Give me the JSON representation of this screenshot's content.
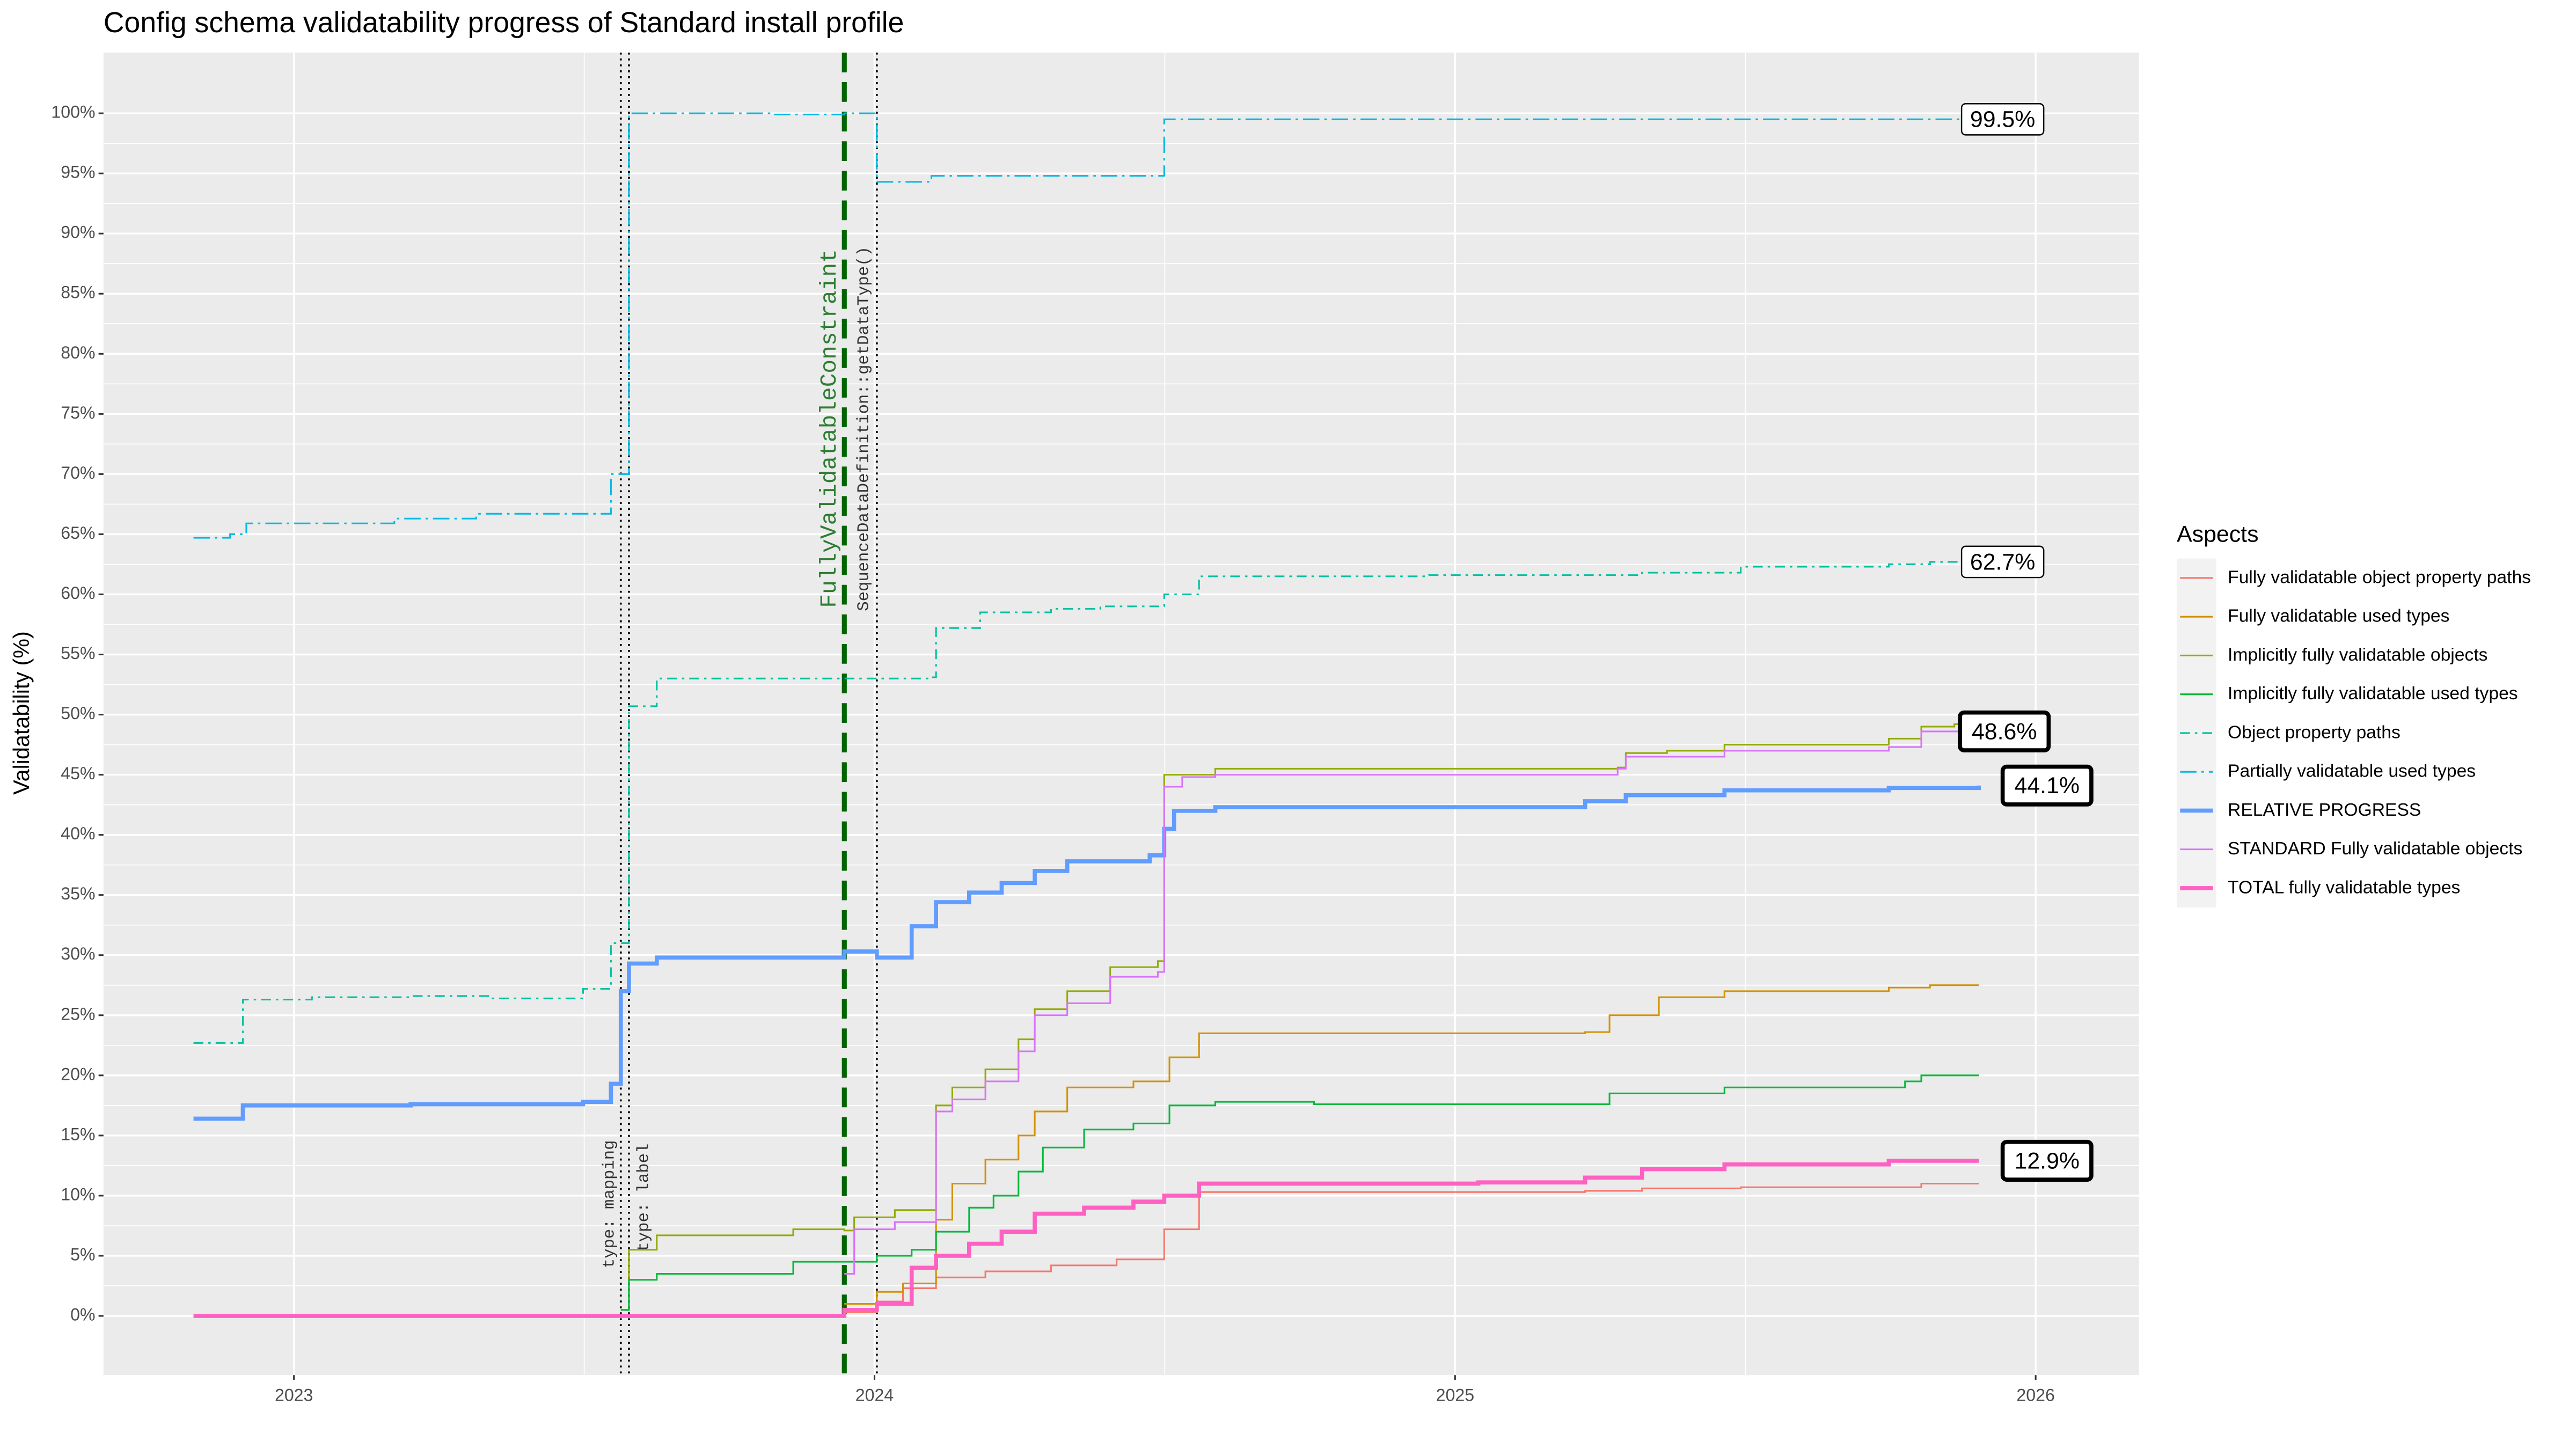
{
  "chart_data": {
    "type": "line",
    "step": true,
    "title": "Config schema validatability progress of Standard install profile",
    "y_label": "Validatability (%)",
    "xlim": [
      2022.672,
      2026.178
    ],
    "xticks": [
      2023,
      2024,
      2025,
      2026
    ],
    "ylim": [
      -4.92,
      105.05
    ],
    "yticks": [
      {
        "value": 0,
        "label": "0%"
      },
      {
        "value": 5,
        "label": "5%"
      },
      {
        "value": 10,
        "label": "10%"
      },
      {
        "value": 15,
        "label": "15%"
      },
      {
        "value": 20,
        "label": "20%"
      },
      {
        "value": 25,
        "label": "25%"
      },
      {
        "value": 30,
        "label": "30%"
      },
      {
        "value": 35,
        "label": "35%"
      },
      {
        "value": 40,
        "label": "40%"
      },
      {
        "value": 45,
        "label": "45%"
      },
      {
        "value": 50,
        "label": "50%"
      },
      {
        "value": 55,
        "label": "55%"
      },
      {
        "value": 60,
        "label": "60%"
      },
      {
        "value": 65,
        "label": "65%"
      },
      {
        "value": 70,
        "label": "70%"
      },
      {
        "value": 75,
        "label": "75%"
      },
      {
        "value": 80,
        "label": "80%"
      },
      {
        "value": 85,
        "label": "85%"
      },
      {
        "value": 90,
        "label": "90%"
      },
      {
        "value": 95,
        "label": "95%"
      },
      {
        "value": 100,
        "label": "100%"
      }
    ],
    "grid": true,
    "legend_title": "Aspects",
    "legend_position": "right",
    "series": [
      {
        "name": "Fully validatable object property paths",
        "color": "#F8766D",
        "dash": "solid",
        "width": 1,
        "x": [
          2023.948,
          2024.004,
          2024.049,
          2024.106,
          2024.191,
          2024.304,
          2024.417,
          2024.499,
          2024.559,
          2025.224,
          2025.322,
          2025.492,
          2025.803,
          2025.902
        ],
        "values": [
          0.3,
          1.2,
          2.3,
          3.2,
          3.7,
          4.2,
          4.7,
          7.2,
          10.3,
          10.4,
          10.6,
          10.7,
          11.0,
          11.0
        ]
      },
      {
        "name": "Fully validatable used types",
        "color": "#D39200",
        "dash": "solid",
        "width": 1,
        "x": [
          2023.948,
          2024.004,
          2024.049,
          2024.106,
          2024.134,
          2024.191,
          2024.248,
          2024.276,
          2024.332,
          2024.446,
          2024.508,
          2024.559,
          2025.224,
          2025.266,
          2025.351,
          2025.464,
          2025.747,
          2025.818,
          2025.902
        ],
        "values": [
          1.0,
          2.0,
          2.7,
          8.0,
          11.0,
          13.0,
          15.0,
          17.0,
          19.0,
          19.5,
          21.5,
          23.5,
          23.6,
          25.0,
          26.5,
          27.0,
          27.3,
          27.5,
          27.5
        ]
      },
      {
        "name": "Implicitly fully validatable objects",
        "color": "#93AA00",
        "dash": "solid",
        "width": 1,
        "x": [
          2023.563,
          2023.577,
          2023.625,
          2023.86,
          2023.948,
          2023.965,
          2024.035,
          2024.106,
          2024.134,
          2024.191,
          2024.248,
          2024.276,
          2024.332,
          2024.406,
          2024.488,
          2024.499,
          2024.587,
          2025.28,
          2025.294,
          2025.365,
          2025.464,
          2025.747,
          2025.803,
          2025.86,
          2025.902
        ],
        "values": [
          0.5,
          5.5,
          6.7,
          7.2,
          7.1,
          8.2,
          8.8,
          17.5,
          19.0,
          20.5,
          23.0,
          25.5,
          27.0,
          29.0,
          29.5,
          45.0,
          45.5,
          45.6,
          46.8,
          47.0,
          47.5,
          48.0,
          49.0,
          49.2,
          49.2
        ]
      },
      {
        "name": "Implicitly fully validatable used types",
        "color": "#00BA38",
        "dash": "solid",
        "width": 1,
        "x": [
          2023.563,
          2023.577,
          2023.625,
          2023.86,
          2024.004,
          2024.064,
          2024.106,
          2024.163,
          2024.205,
          2024.248,
          2024.29,
          2024.361,
          2024.446,
          2024.508,
          2024.587,
          2024.757,
          2025.266,
          2025.464,
          2025.775,
          2025.803,
          2025.902
        ],
        "values": [
          0.5,
          3.0,
          3.5,
          4.5,
          5.0,
          5.5,
          7.0,
          9.0,
          10.0,
          12.0,
          14.0,
          15.5,
          16.0,
          17.5,
          17.8,
          17.6,
          18.5,
          19.0,
          19.5,
          20.0,
          20.0
        ]
      },
      {
        "name": "Object property paths",
        "color": "#00C19F",
        "dash": "dotdash",
        "width": 1,
        "x": [
          2022.827,
          2022.912,
          2023.031,
          2023.201,
          2023.342,
          2023.498,
          2023.546,
          2023.577,
          2023.625,
          2024.098,
          2024.106,
          2024.182,
          2024.304,
          2024.389,
          2024.499,
          2024.559,
          2024.955,
          2025.322,
          2025.492,
          2025.747,
          2025.818,
          2025.902
        ],
        "values": [
          22.7,
          26.3,
          26.5,
          26.6,
          26.4,
          27.2,
          31.0,
          50.7,
          53.0,
          53.1,
          57.2,
          58.5,
          58.8,
          59.0,
          60.0,
          61.5,
          61.6,
          61.8,
          62.3,
          62.5,
          62.7,
          62.7
        ]
      },
      {
        "name": "Partially validatable used types",
        "color": "#00B9E3",
        "dash": "longdash",
        "width": 1,
        "x": [
          2022.827,
          2022.89,
          2022.918,
          2023.173,
          2023.314,
          2023.546,
          2023.577,
          2023.823,
          2023.948,
          2024.004,
          2024.098,
          2024.474,
          2024.499,
          2025.902
        ],
        "values": [
          64.7,
          65.0,
          65.9,
          66.3,
          66.7,
          70.0,
          100.0,
          99.9,
          100.0,
          94.3,
          94.8,
          94.8,
          99.5,
          99.5
        ]
      },
      {
        "name": "RELATIVE PROGRESS",
        "color": "#619CFF",
        "dash": "solid",
        "width": 2.5,
        "x": [
          2022.827,
          2022.912,
          2023.201,
          2023.498,
          2023.546,
          2023.563,
          2023.577,
          2023.625,
          2023.948,
          2024.004,
          2024.064,
          2024.106,
          2024.163,
          2024.219,
          2024.276,
          2024.332,
          2024.474,
          2024.499,
          2024.516,
          2024.587,
          2025.04,
          2025.224,
          2025.294,
          2025.464,
          2025.747,
          2025.902
        ],
        "values": [
          16.4,
          17.5,
          17.6,
          17.8,
          19.3,
          27.0,
          29.3,
          29.8,
          30.3,
          29.8,
          32.4,
          34.4,
          35.2,
          36.0,
          37.0,
          37.8,
          38.3,
          40.5,
          42.0,
          42.3,
          42.3,
          42.8,
          43.3,
          43.7,
          43.9,
          44.1
        ]
      },
      {
        "name": "STANDARD Fully validatable objects",
        "color": "#DB72FB",
        "dash": "solid",
        "width": 1,
        "x": [
          2023.948,
          2023.965,
          2024.035,
          2024.106,
          2024.134,
          2024.191,
          2024.248,
          2024.276,
          2024.332,
          2024.406,
          2024.488,
          2024.499,
          2024.53,
          2024.587,
          2025.28,
          2025.294,
          2025.464,
          2025.747,
          2025.803,
          2025.902
        ],
        "values": [
          3.5,
          7.2,
          7.8,
          17.0,
          18.0,
          19.5,
          22.0,
          25.0,
          26.0,
          28.2,
          28.6,
          44.0,
          44.8,
          45.0,
          45.5,
          46.5,
          47.0,
          47.3,
          48.6,
          48.6
        ]
      },
      {
        "name": "TOTAL fully validatable types",
        "color": "#FF61C3",
        "dash": "solid",
        "width": 2.5,
        "x": [
          2022.827,
          2023.948,
          2024.004,
          2024.064,
          2024.106,
          2024.163,
          2024.219,
          2024.276,
          2024.361,
          2024.446,
          2024.499,
          2024.559,
          2025.04,
          2025.224,
          2025.322,
          2025.464,
          2025.747,
          2025.902
        ],
        "values": [
          0,
          0.5,
          1.0,
          4.0,
          5.0,
          6.0,
          7.0,
          8.5,
          9.0,
          9.5,
          10.0,
          11.0,
          11.1,
          11.5,
          12.2,
          12.6,
          12.9,
          12.9
        ]
      }
    ],
    "vlines": [
      {
        "x": 2023.563,
        "label": "type: mapping",
        "color": "#000000",
        "dash": "dotted"
      },
      {
        "x": 2023.577,
        "label": "type: label",
        "color": "#000000",
        "dash": "dotted"
      },
      {
        "x": 2023.948,
        "label": "FullyValidatableConstraint",
        "color": "#006400",
        "dash": "dashed"
      },
      {
        "x": 2024.004,
        "label": "SequenceDataDefinition::getDataType()",
        "color": "#000000",
        "dash": "dotted"
      }
    ],
    "end_labels": [
      {
        "value": 99.5,
        "label": "99.5%"
      },
      {
        "value": 62.7,
        "label": "62.7%"
      },
      {
        "value": 48.6,
        "label": "48.6%"
      },
      {
        "value": 44.1,
        "label": "44.1%"
      },
      {
        "value": 12.9,
        "label": "12.9%"
      }
    ]
  }
}
